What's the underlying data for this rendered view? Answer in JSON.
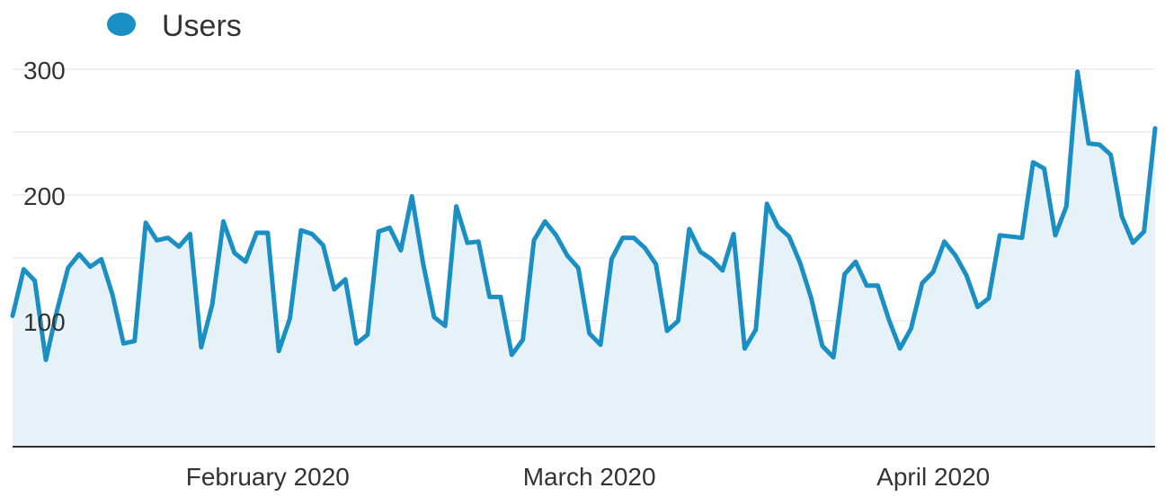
{
  "chart_data": {
    "type": "area",
    "title": "",
    "xlabel": "",
    "ylabel": "",
    "start_date": "2020-01-09",
    "x_ticks": [
      {
        "label": "February 2020",
        "date": "2020-02-01"
      },
      {
        "label": "March 2020",
        "date": "2020-03-01"
      },
      {
        "label": "April 2020",
        "date": "2020-04-01"
      }
    ],
    "y_ticks": [
      100,
      200,
      300
    ],
    "ylim": [
      0,
      300
    ],
    "grid": "horizontal",
    "legend_position": "top-left",
    "colors": {
      "line": "#1a8fc4",
      "fill": "#e6f1f8",
      "grid": "#ececec",
      "baseline": "#333333",
      "text": "#333333",
      "legend_dot": "#1a8fc4"
    },
    "series": [
      {
        "name": "Users",
        "values": [
          104,
          141,
          132,
          69,
          108,
          142,
          153,
          143,
          149,
          121,
          82,
          84,
          178,
          164,
          166,
          159,
          169,
          79,
          113,
          179,
          154,
          147,
          170,
          170,
          76,
          102,
          172,
          169,
          160,
          125,
          133,
          82,
          89,
          171,
          174,
          156,
          199,
          146,
          103,
          96,
          191,
          162,
          163,
          119,
          119,
          73,
          85,
          164,
          179,
          168,
          152,
          142,
          90,
          81,
          149,
          166,
          166,
          158,
          145,
          92,
          100,
          173,
          155,
          149,
          140,
          169,
          78,
          93,
          193,
          175,
          167,
          146,
          118,
          80,
          71,
          137,
          147,
          128,
          128,
          101,
          78,
          94,
          130,
          139,
          163,
          152,
          136,
          111,
          118,
          168,
          167,
          166,
          226,
          221,
          168,
          191,
          298,
          241,
          240,
          232,
          183,
          162,
          171,
          253
        ]
      }
    ]
  }
}
